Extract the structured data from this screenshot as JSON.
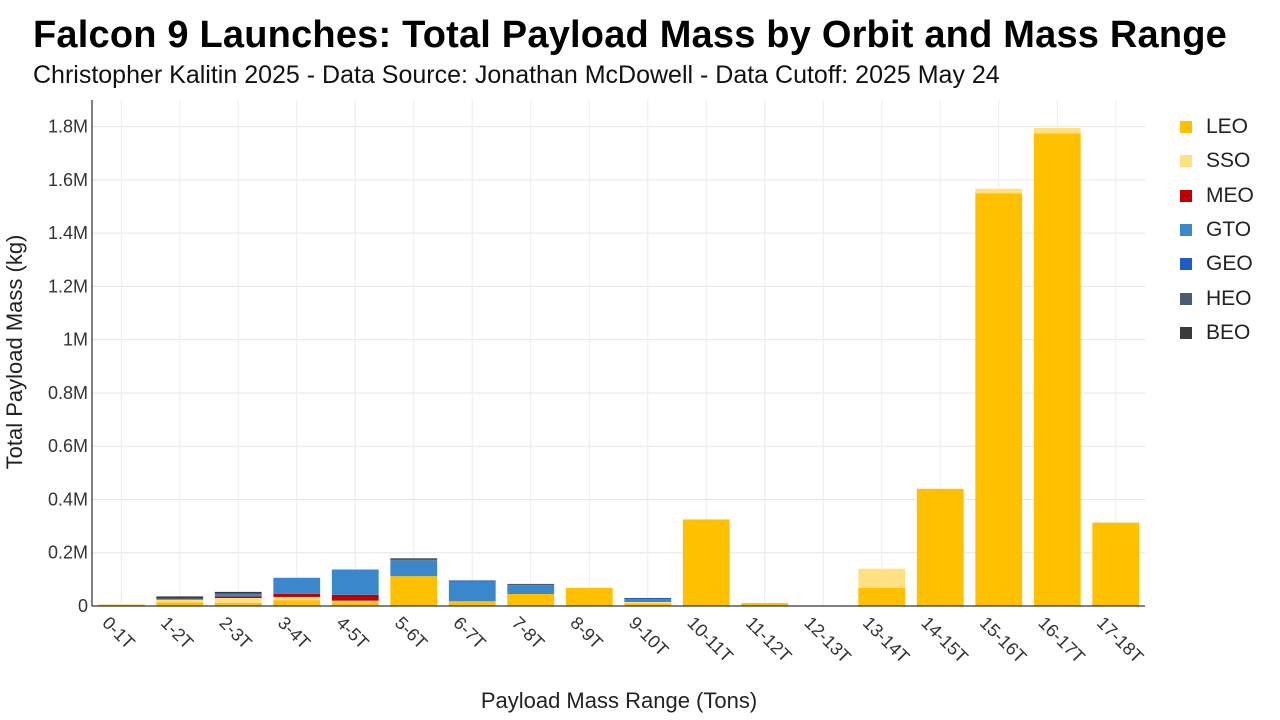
{
  "chart_data": {
    "type": "bar",
    "stacked": true,
    "title": "Falcon 9 Launches: Total Payload Mass by Orbit and Mass Range",
    "subtitle": "Christopher Kalitin 2025 - Data Source: Jonathan McDowell - Data Cutoff: 2025 May 24",
    "xlabel": "Payload Mass Range (Tons)",
    "ylabel": "Total Payload Mass (kg)",
    "ylim": [
      0,
      1900000
    ],
    "yticks": [
      0,
      200000,
      400000,
      600000,
      800000,
      1000000,
      1200000,
      1400000,
      1600000,
      1800000
    ],
    "ytick_labels": [
      "0",
      "0.2M",
      "0.4M",
      "0.6M",
      "0.8M",
      "1M",
      "1.2M",
      "1.4M",
      "1.6M",
      "1.8M"
    ],
    "grid": true,
    "legend_position": "right",
    "categories": [
      "0-1T",
      "1-2T",
      "2-3T",
      "3-4T",
      "4-5T",
      "5-6T",
      "6-7T",
      "7-8T",
      "8-9T",
      "9-10T",
      "10-11T",
      "11-12T",
      "12-13T",
      "13-14T",
      "14-15T",
      "15-16T",
      "16-17T",
      "17-18T"
    ],
    "series": [
      {
        "name": "LEO",
        "color": "#FFC000",
        "values": [
          4000,
          14000,
          12000,
          22000,
          14000,
          112000,
          18000,
          45000,
          68000,
          10000,
          325000,
          11000,
          0,
          68000,
          440000,
          1550000,
          1775000,
          313000
        ]
      },
      {
        "name": "SSO",
        "color": "#FFE082",
        "values": [
          3000,
          10000,
          18000,
          12000,
          6000,
          0,
          0,
          0,
          0,
          5000,
          0,
          0,
          0,
          72000,
          0,
          17000,
          20000,
          0
        ]
      },
      {
        "name": "MEO",
        "color": "#C00000",
        "values": [
          0,
          0,
          6000,
          12000,
          22000,
          0,
          0,
          0,
          0,
          0,
          0,
          0,
          0,
          0,
          0,
          0,
          0,
          0
        ]
      },
      {
        "name": "GTO",
        "color": "#3A87CB",
        "values": [
          0,
          0,
          10000,
          60000,
          95000,
          60000,
          73000,
          33000,
          0,
          10000,
          0,
          0,
          0,
          0,
          0,
          0,
          0,
          0
        ]
      },
      {
        "name": "GEO",
        "color": "#1E5BC6",
        "values": [
          0,
          0,
          0,
          0,
          0,
          0,
          5000,
          0,
          0,
          5000,
          0,
          0,
          0,
          0,
          0,
          0,
          0,
          0
        ]
      },
      {
        "name": "HEO",
        "color": "#4A5C70",
        "values": [
          0,
          6000,
          0,
          0,
          0,
          3000,
          0,
          5000,
          0,
          0,
          0,
          0,
          0,
          0,
          0,
          0,
          0,
          0
        ]
      },
      {
        "name": "BEO",
        "color": "#3A3A3A",
        "values": [
          0,
          6000,
          7000,
          0,
          0,
          4000,
          0,
          0,
          0,
          0,
          0,
          0,
          0,
          0,
          0,
          0,
          0,
          0
        ]
      }
    ]
  }
}
